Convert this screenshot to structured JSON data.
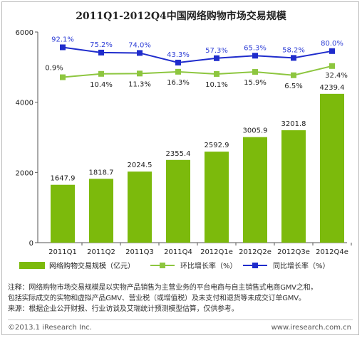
{
  "chart_data": {
    "type": "bar+line",
    "title": "2011Q1-2012Q4中国网络购物市场交易规模",
    "categories": [
      "2011Q1",
      "2011Q2",
      "2011Q3",
      "2011Q4",
      "2012Q1e",
      "2012Q2e",
      "2012Q3e",
      "2012Q4e"
    ],
    "bar_series": {
      "name": "网络购物交易规模（亿元）",
      "values": [
        1647.9,
        1818.7,
        2024.5,
        2355.4,
        2592.9,
        3005.9,
        3201.8,
        4239.4
      ],
      "labels": [
        "1647.9",
        "1818.7",
        "2024.5",
        "2355.4",
        "2592.9",
        "3005.9",
        "3201.8",
        "4239.4"
      ]
    },
    "line_series": [
      {
        "name": "环比增长率（%）",
        "values": [
          0.9,
          10.4,
          11.3,
          16.3,
          10.1,
          15.9,
          6.5,
          32.4
        ],
        "labels": [
          "0.9%",
          "10.4%",
          "11.3%",
          "16.3%",
          "10.1%",
          "15.9%",
          "6.5%",
          "32.4%"
        ]
      },
      {
        "name": "同比增长率（%）",
        "values": [
          92.1,
          75.2,
          74.0,
          43.3,
          57.3,
          65.3,
          58.2,
          80.0
        ],
        "labels": [
          "92.1%",
          "75.2%",
          "74.0%",
          "43.3%",
          "57.3%",
          "65.3%",
          "58.2%",
          "80.0%"
        ]
      }
    ],
    "y_ticks": [
      "0",
      "2000",
      "4000",
      "6000"
    ],
    "ylim": [
      0,
      6000
    ],
    "grid": false,
    "legend": "bottom",
    "colors": {
      "bar": "#7cba0c",
      "line_qoq": "#8dc63f",
      "line_yoy": "#1f2ccc",
      "label_yoy": "#2f3fd6"
    }
  },
  "footer": {
    "note_1": "注释：网络购物市场交易规模是以实物产品销售为主营业务的平台电商与自主销售式电商GMV之和，",
    "note_2": "包括实际成交的实物和虚拟产品GMV、营业税（或增值税）及未支付和退货等未成交订单GMV。",
    "source": "来源：根据企业公开财报、行业访谈及艾瑞统计预测模型估算，仅供参考。",
    "copyright": "©2013.1 iResearch Inc.",
    "website": "www.iresearch.com.cn"
  }
}
